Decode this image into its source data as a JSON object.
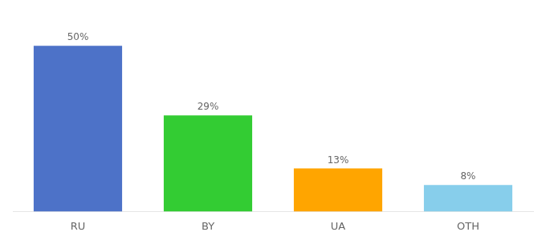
{
  "chart_data": {
    "type": "bar",
    "categories": [
      "RU",
      "BY",
      "UA",
      "OTH"
    ],
    "values": [
      50,
      29,
      13,
      8
    ],
    "value_labels": [
      "50%",
      "29%",
      "13%",
      "8%"
    ],
    "data_labels": true,
    "colors": [
      "#4D72C8",
      "#33CC33",
      "#FFA500",
      "#87CEEB"
    ],
    "ylim": [
      0,
      58
    ],
    "grid": false,
    "tick_labels": "x"
  }
}
